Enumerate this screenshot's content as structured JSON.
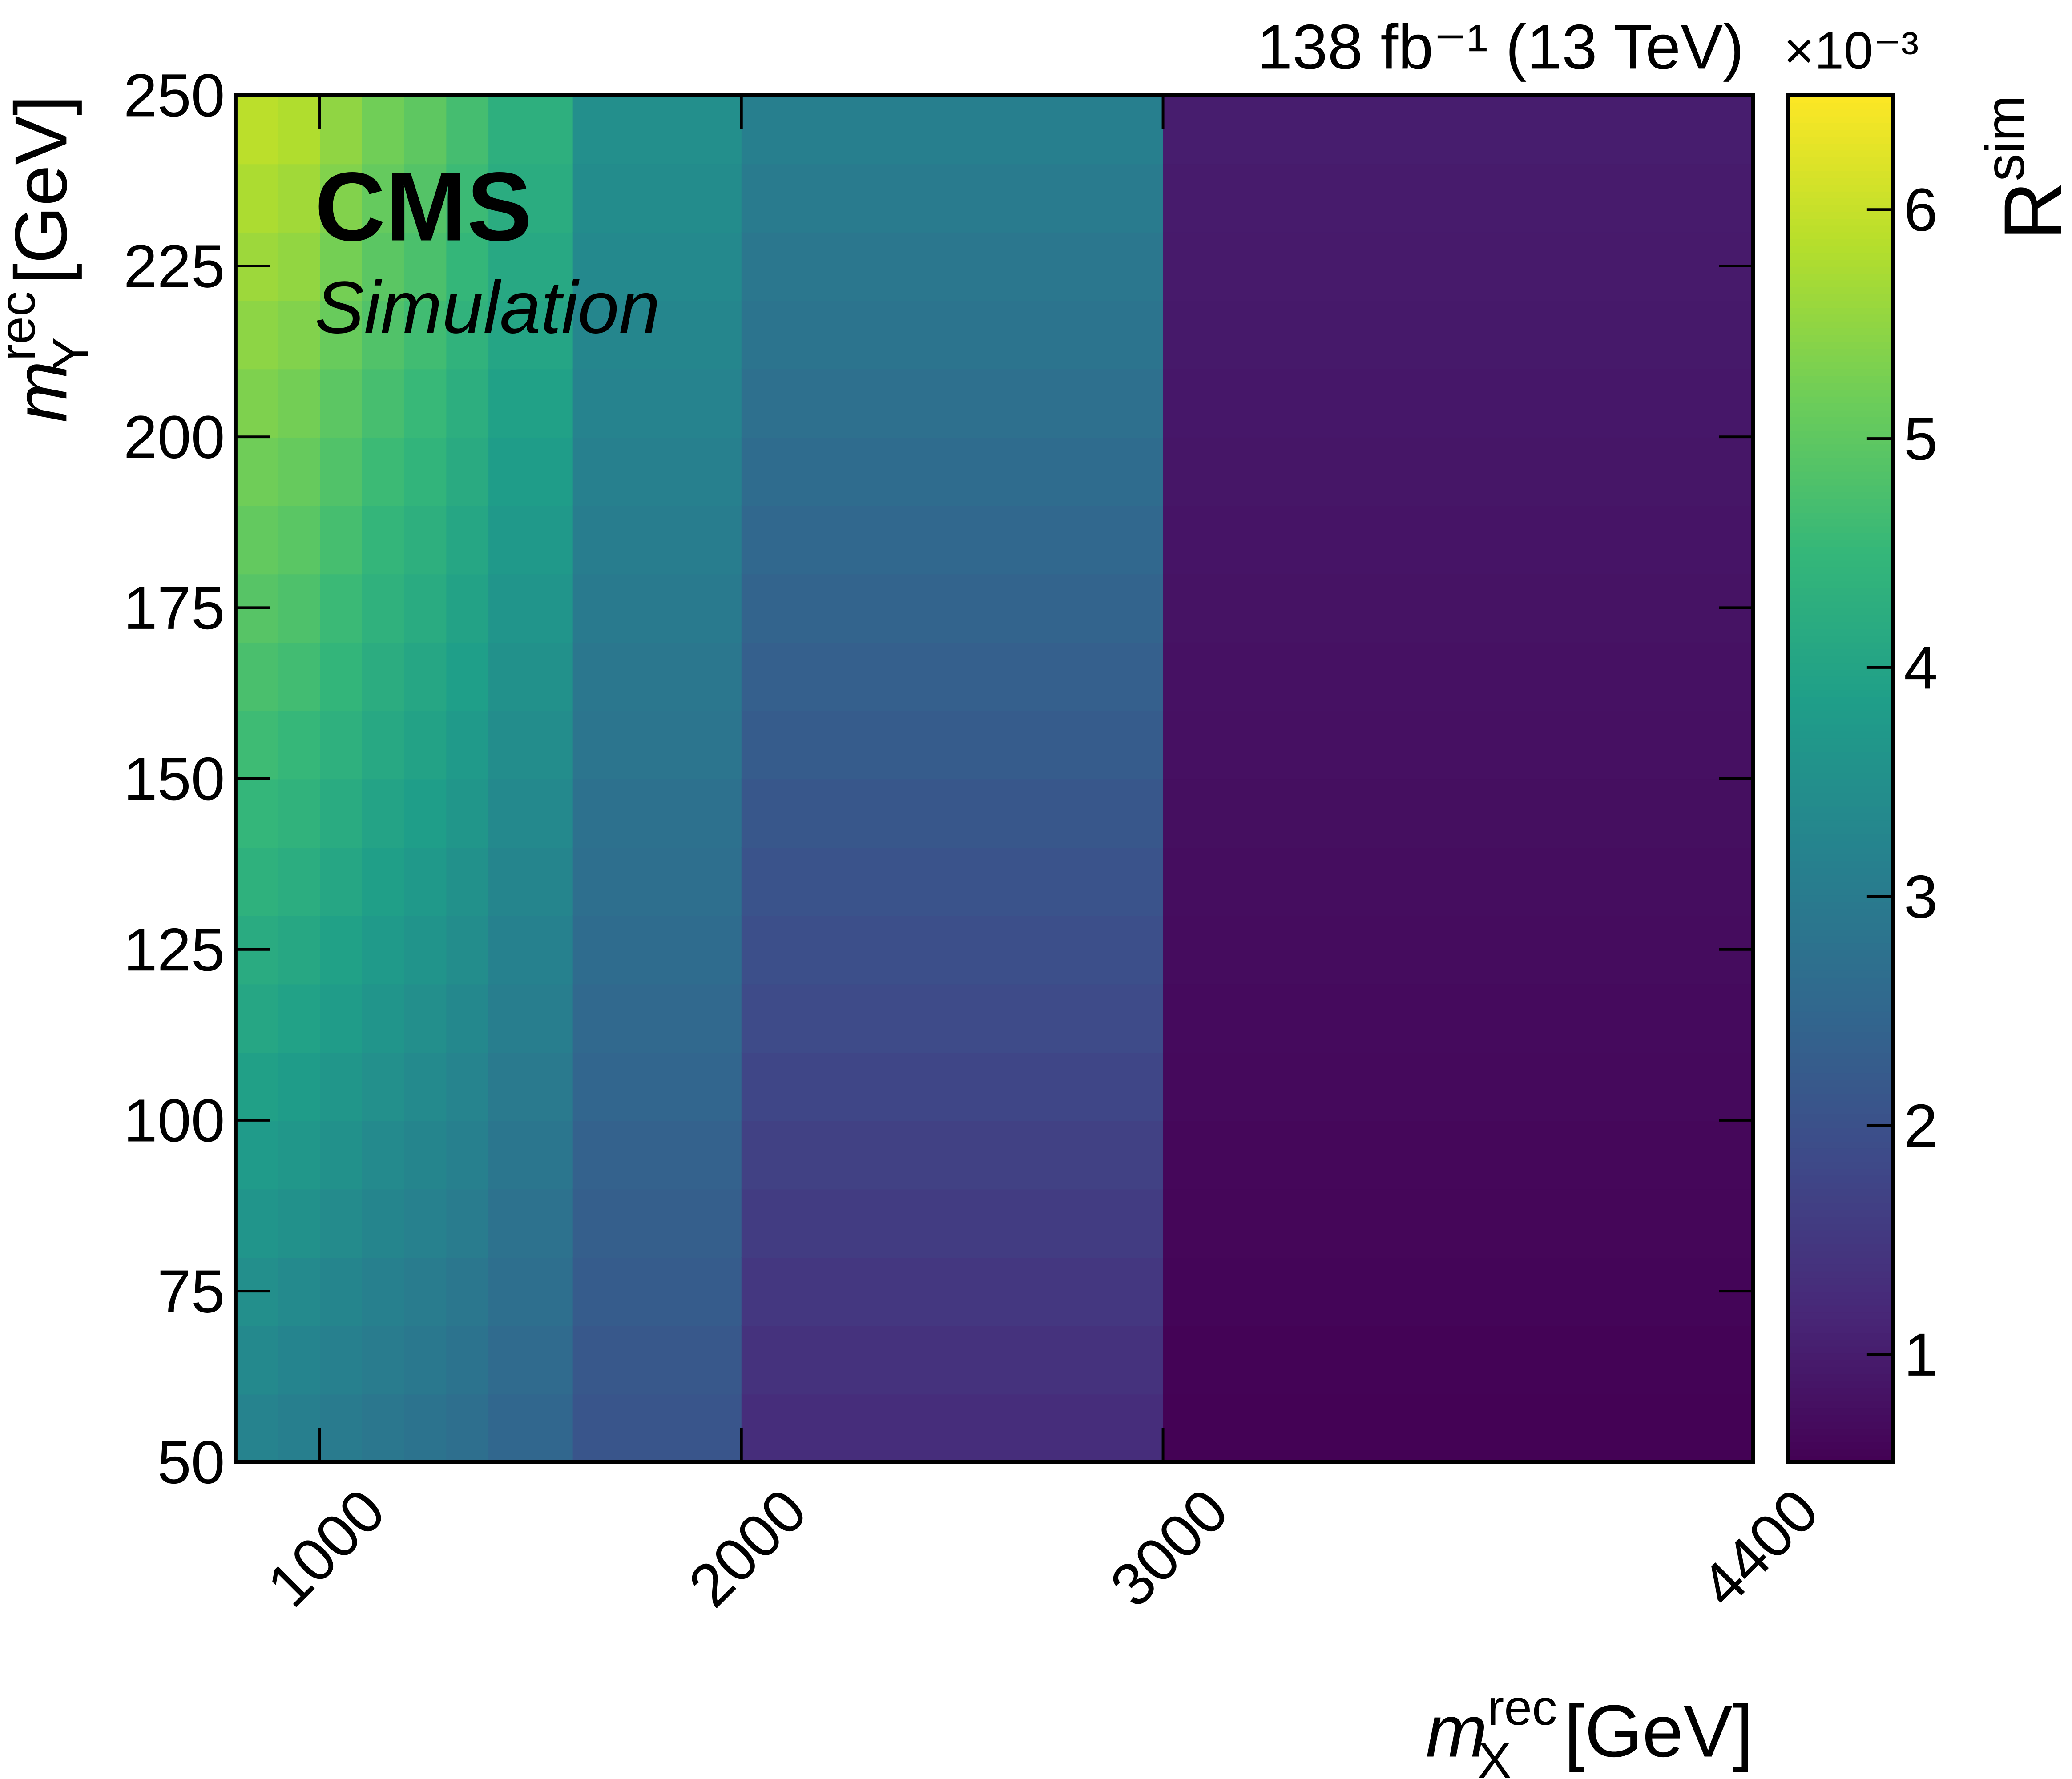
{
  "chart_data": {
    "type": "heatmap",
    "experiment": "CMS",
    "status": "Simulation",
    "lumi_label": "138 fb⁻¹ (13 TeV)",
    "xlabel": {
      "symbol": "m",
      "subscript": "X",
      "superscript": "rec",
      "unit": "[GeV]"
    },
    "ylabel": {
      "symbol": "m",
      "subscript": "Y",
      "superscript": "rec",
      "unit": "[GeV]"
    },
    "zlabel": {
      "symbol": "R",
      "superscript": "sim"
    },
    "z_multiplier": "×10⁻³",
    "colormap": "viridis",
    "x_bins": [
      800,
      900,
      1000,
      1100,
      1200,
      1300,
      1400,
      1600,
      2000,
      3000,
      4400
    ],
    "y_bins": [
      50,
      60,
      70,
      80,
      90,
      100,
      110,
      120,
      130,
      140,
      150,
      160,
      170,
      180,
      190,
      200,
      210,
      220,
      230,
      240,
      250
    ],
    "values": [
      [
        3.2,
        3.34,
        3.48,
        3.63,
        3.77,
        3.91,
        4.05,
        4.19,
        4.34,
        4.48,
        4.62,
        4.76,
        4.91,
        5.05,
        5.19,
        5.33,
        5.47,
        5.62,
        5.76,
        5.9
      ],
      [
        3.1,
        3.24,
        3.38,
        3.53,
        3.67,
        3.81,
        3.95,
        4.09,
        4.24,
        4.38,
        4.52,
        4.66,
        4.81,
        4.95,
        5.09,
        5.23,
        5.37,
        5.52,
        5.66,
        5.8
      ],
      [
        3.0,
        3.13,
        3.26,
        3.39,
        3.53,
        3.66,
        3.79,
        3.92,
        4.05,
        4.18,
        4.32,
        4.45,
        4.58,
        4.71,
        4.84,
        4.97,
        5.11,
        5.24,
        5.37,
        5.5
      ],
      [
        2.9,
        3.02,
        3.14,
        3.26,
        3.38,
        3.51,
        3.63,
        3.75,
        3.87,
        3.99,
        4.11,
        4.23,
        4.35,
        4.47,
        4.59,
        4.72,
        4.84,
        4.96,
        5.08,
        5.2
      ],
      [
        2.8,
        2.92,
        3.03,
        3.15,
        3.26,
        3.38,
        3.49,
        3.61,
        3.73,
        3.84,
        3.96,
        4.07,
        4.19,
        4.31,
        4.42,
        4.54,
        4.65,
        4.77,
        4.88,
        5.0
      ],
      [
        2.7,
        2.81,
        2.91,
        3.02,
        3.12,
        3.23,
        3.33,
        3.44,
        3.54,
        3.65,
        3.75,
        3.86,
        3.96,
        4.07,
        4.17,
        4.28,
        4.38,
        4.49,
        4.59,
        4.7
      ],
      [
        2.5,
        2.59,
        2.69,
        2.78,
        2.88,
        2.97,
        3.07,
        3.16,
        3.26,
        3.35,
        3.45,
        3.54,
        3.64,
        3.73,
        3.83,
        3.92,
        4.02,
        4.11,
        4.21,
        4.3
      ],
      [
        2.1,
        2.17,
        2.25,
        2.32,
        2.39,
        2.47,
        2.54,
        2.62,
        2.69,
        2.76,
        2.84,
        2.91,
        2.98,
        3.06,
        3.13,
        3.21,
        3.28,
        3.35,
        3.43,
        3.5
      ],
      [
        1.3,
        1.39,
        1.49,
        1.58,
        1.68,
        1.77,
        1.87,
        1.96,
        2.06,
        2.15,
        2.25,
        2.34,
        2.44,
        2.53,
        2.63,
        2.72,
        2.82,
        2.91,
        3.01,
        3.1
      ],
      [
        0.55,
        0.57,
        0.6,
        0.62,
        0.64,
        0.67,
        0.69,
        0.72,
        0.74,
        0.76,
        0.79,
        0.81,
        0.83,
        0.86,
        0.88,
        0.91,
        0.93,
        0.95,
        0.98,
        1.0
      ]
    ],
    "xlim": [
      800,
      4400
    ],
    "xticks": [
      1000,
      2000,
      3000,
      4400
    ],
    "ylim": [
      50,
      250
    ],
    "yticks": [
      50,
      75,
      100,
      125,
      150,
      175,
      200,
      225,
      250
    ],
    "zlim": [
      0.53,
      6.5
    ],
    "zticks": [
      1,
      2,
      3,
      4,
      5,
      6
    ]
  }
}
